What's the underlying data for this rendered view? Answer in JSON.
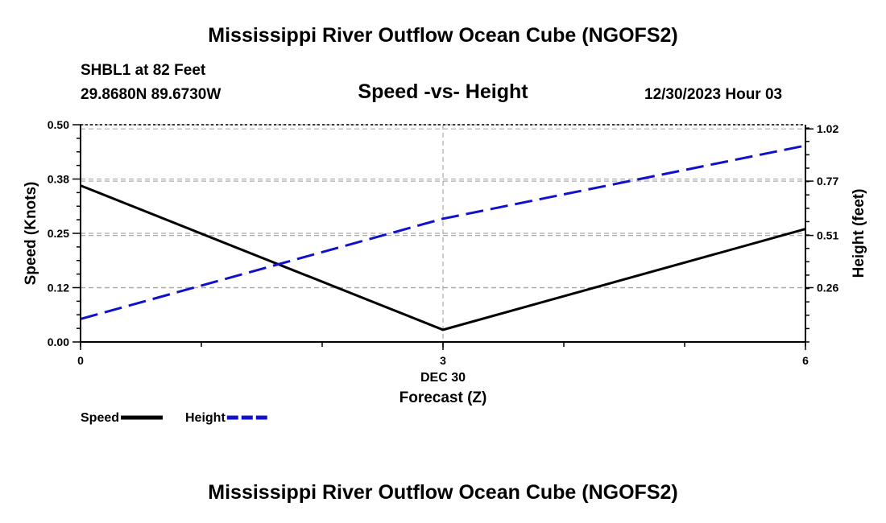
{
  "header": {
    "title": "Mississippi River Outflow Ocean Cube (NGOFS2)",
    "station": "SHBL1 at 82 Feet",
    "coords": "29.8680N  89.6730W",
    "datetime": "12/30/2023 Hour 03"
  },
  "footer": {
    "title": "Mississippi River Outflow Ocean Cube (NGOFS2)"
  },
  "chart_data": {
    "type": "line",
    "title": "Speed -vs- Height",
    "xlabel": "Forecast (Z)",
    "date_label": "DEC 30",
    "ylabel": "Speed (Knots)",
    "y2label": "Height (feet)",
    "x": [
      0,
      3,
      6
    ],
    "xlim": [
      0,
      6
    ],
    "x_ticks": [
      "0",
      "3",
      "6"
    ],
    "ylim": [
      0,
      0.5
    ],
    "y_ticks": [
      {
        "value": 0.0,
        "label": "0.00"
      },
      {
        "value": 0.125,
        "label": "0.12"
      },
      {
        "value": 0.25,
        "label": "0.25"
      },
      {
        "value": 0.375,
        "label": "0.38"
      },
      {
        "value": 0.5,
        "label": "0.50"
      }
    ],
    "y2lim": [
      0,
      1.04
    ],
    "y2_ticks": [
      {
        "value": 0.26,
        "label": "0.26"
      },
      {
        "value": 0.51,
        "label": "0.51"
      },
      {
        "value": 0.77,
        "label": "0.77"
      },
      {
        "value": 1.02,
        "label": "1.02"
      }
    ],
    "grid": true,
    "series": [
      {
        "name": "Speed",
        "axis": "left",
        "color": "#000000",
        "style": "solid",
        "values": [
          0.36,
          0.028,
          0.26
        ]
      },
      {
        "name": "Height",
        "axis": "right",
        "color": "#1111cc",
        "style": "dashed",
        "values": [
          0.11,
          0.59,
          0.94
        ]
      }
    ],
    "legend": [
      {
        "label": "Speed",
        "color": "#000000",
        "style": "solid"
      },
      {
        "label": "Height",
        "color": "#1111cc",
        "style": "dashed"
      }
    ]
  }
}
